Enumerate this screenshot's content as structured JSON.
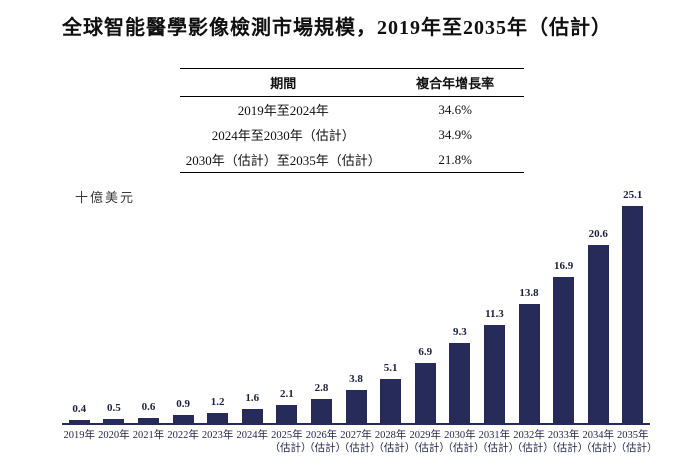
{
  "title": "全球智能醫學影像檢測市場規模，2019年至2035年（估計）",
  "cagr_table": {
    "headers": [
      "期間",
      "複合年增長率"
    ],
    "rows": [
      {
        "period": "2019年至2024年",
        "cagr": "34.6%"
      },
      {
        "period": "2024年至2030年（估計）",
        "cagr": "34.9%"
      },
      {
        "period": "2030年（估計）至2035年（估計）",
        "cagr": "21.8%"
      }
    ]
  },
  "chart_data": {
    "type": "bar",
    "title": "全球智能醫學影像檢測市場規模，2019年至2035年（估計）",
    "ylabel": "十億美元",
    "xlabel": "",
    "categories": [
      "2019年",
      "2020年",
      "2021年",
      "2022年",
      "2023年",
      "2024年",
      "2025年",
      "2026年",
      "2027年",
      "2028年",
      "2029年",
      "2030年",
      "2031年",
      "2032年",
      "2033年",
      "2034年",
      "2035年"
    ],
    "values": [
      0.4,
      0.5,
      0.6,
      0.9,
      1.2,
      1.6,
      2.1,
      2.8,
      3.8,
      5.1,
      6.9,
      9.3,
      11.3,
      13.8,
      16.9,
      20.6,
      25.1
    ],
    "estimate_label": "（估計）",
    "estimated_from_index": 6,
    "bar_color": "#262b5a",
    "axis_color": "#262b5a",
    "value_label_color": "#1c2140",
    "ylim": [
      0,
      26
    ],
    "grid": false,
    "legend": "none",
    "value_labels": true
  }
}
